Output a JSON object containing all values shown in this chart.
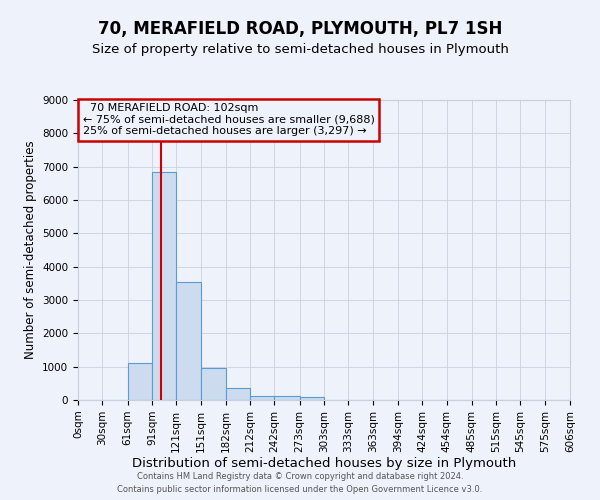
{
  "title": "70, MERAFIELD ROAD, PLYMOUTH, PL7 1SH",
  "subtitle": "Size of property relative to semi-detached houses in Plymouth",
  "xlabel": "Distribution of semi-detached houses by size in Plymouth",
  "ylabel": "Number of semi-detached properties",
  "property_size": 102,
  "property_line_color": "#cc0000",
  "bar_color": "#ccdcee",
  "bar_edge_color": "#5b9bd5",
  "annotation_line1": "70 MERAFIELD ROAD: 102sqm",
  "annotation_line2": "← 75% of semi-detached houses are smaller (9,688)",
  "annotation_line3": "25% of semi-detached houses are larger (3,297) →",
  "annotation_box_color": "#cc0000",
  "bin_edges": [
    0,
    30,
    61,
    91,
    121,
    151,
    182,
    212,
    242,
    273,
    303,
    333,
    363,
    394,
    424,
    454,
    485,
    515,
    545,
    575,
    606
  ],
  "bin_heights": [
    0,
    0,
    1100,
    6850,
    3550,
    950,
    350,
    130,
    130,
    100,
    0,
    0,
    0,
    0,
    0,
    0,
    0,
    0,
    0,
    0
  ],
  "ylim": [
    0,
    9000
  ],
  "yticks": [
    0,
    1000,
    2000,
    3000,
    4000,
    5000,
    6000,
    7000,
    8000,
    9000
  ],
  "background_color": "#eef2fa",
  "grid_color": "#c8d0e0",
  "footer_line1": "Contains HM Land Registry data © Crown copyright and database right 2024.",
  "footer_line2": "Contains public sector information licensed under the Open Government Licence v3.0.",
  "title_fontsize": 12,
  "subtitle_fontsize": 9.5,
  "xlabel_fontsize": 9.5,
  "ylabel_fontsize": 8.5,
  "tick_fontsize": 7.5,
  "annotation_fontsize": 8,
  "footer_fontsize": 6
}
